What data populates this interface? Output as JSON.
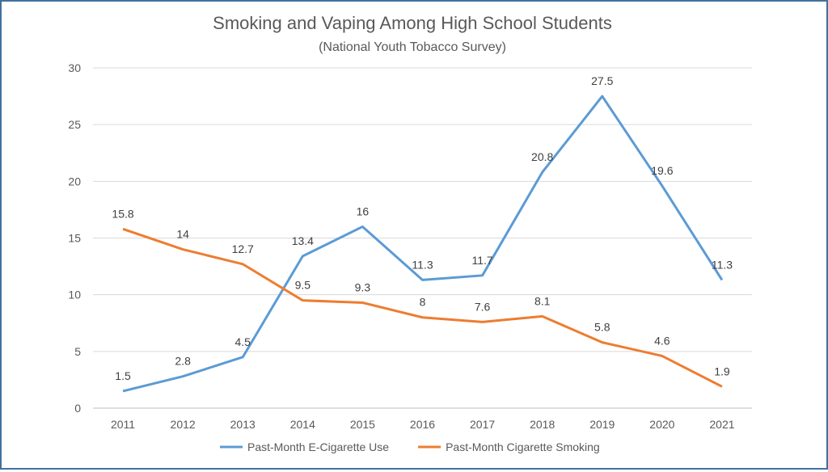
{
  "chart_data": {
    "type": "line",
    "title": "Smoking and Vaping Among High School Students",
    "subtitle": "(National Youth Tobacco Survey)",
    "xlabel": "",
    "ylabel": "",
    "categories": [
      "2011",
      "2012",
      "2013",
      "2014",
      "2015",
      "2016",
      "2017",
      "2018",
      "2019",
      "2020",
      "2021"
    ],
    "ylim": [
      0,
      30
    ],
    "yticks": [
      0,
      5,
      10,
      15,
      20,
      25,
      30
    ],
    "grid": true,
    "legend": "bottom",
    "series": [
      {
        "name": "Past-Month E-Cigarette Use",
        "color": "#5b9bd5",
        "values": [
          1.5,
          2.8,
          4.5,
          13.4,
          16,
          11.3,
          11.7,
          20.8,
          27.5,
          19.6,
          11.3
        ]
      },
      {
        "name": "Past-Month Cigarette Smoking",
        "color": "#ed7d31",
        "values": [
          15.8,
          14,
          12.7,
          9.5,
          9.3,
          8,
          7.6,
          8.1,
          5.8,
          4.6,
          1.9
        ]
      }
    ]
  }
}
